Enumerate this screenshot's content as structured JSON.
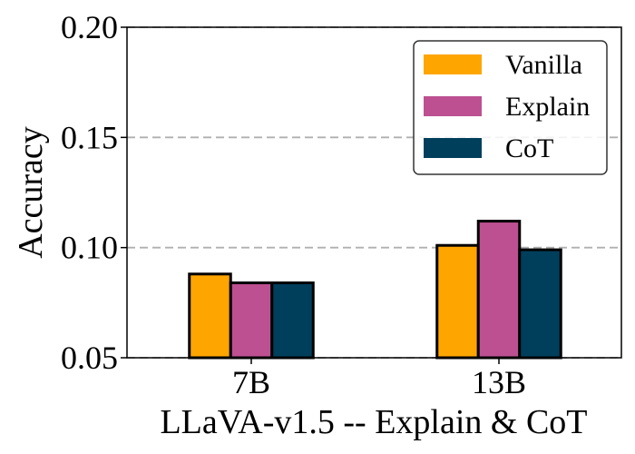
{
  "chart_data": {
    "type": "bar",
    "title": "",
    "xlabel": "LLaVA-v1.5 -- Explain & CoT",
    "ylabel": "Accuracy",
    "categories": [
      "7B",
      "13B"
    ],
    "ylim": [
      0.05,
      0.2
    ],
    "yticks": [
      0.05,
      0.1,
      0.15,
      0.2
    ],
    "ytick_labels": [
      "0.05",
      "0.10",
      "0.15",
      "0.20"
    ],
    "grid": "horizontal dashed",
    "legend_position": "top-right",
    "series": [
      {
        "name": "Vanilla",
        "color": "#FFA500",
        "values": [
          0.088,
          0.101
        ]
      },
      {
        "name": "Explain",
        "color": "#BC5090",
        "values": [
          0.084,
          0.112
        ]
      },
      {
        "name": "CoT",
        "color": "#003F5C",
        "values": [
          0.084,
          0.099
        ]
      }
    ]
  }
}
